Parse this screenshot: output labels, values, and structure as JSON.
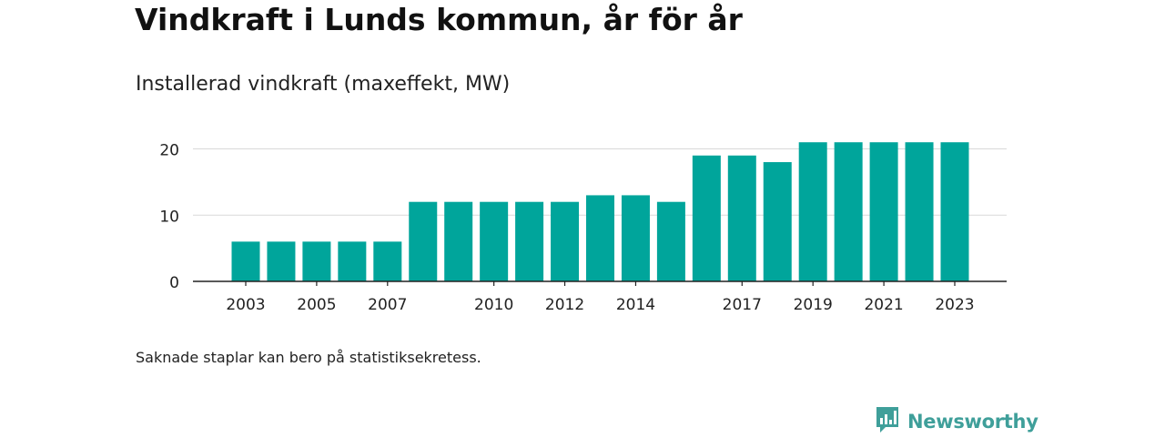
{
  "header": {
    "title": "Vindkraft i Lunds kommun, år för år",
    "subtitle": "Installerad vindkraft (maxeffekt, MW)"
  },
  "footnote": "Saknade staplar kan bero på statistiksekretess.",
  "brand": {
    "name": "Newsworthy",
    "icon": "bar-chart-speech-bubble-icon",
    "color": "#3f9f9a"
  },
  "chart_data": {
    "type": "bar",
    "categories": [
      "2003",
      "2004",
      "2005",
      "2006",
      "2007",
      "2008",
      "2009",
      "2010",
      "2011",
      "2012",
      "2013",
      "2014",
      "2015",
      "2016",
      "2017",
      "2018",
      "2019",
      "2020",
      "2021",
      "2022",
      "2023"
    ],
    "values": [
      6,
      6,
      6,
      6,
      6,
      12,
      12,
      12,
      12,
      12,
      13,
      13,
      12,
      19,
      19,
      18,
      21,
      21,
      21,
      21,
      21
    ],
    "x_tick_labels": [
      "2003",
      "2005",
      "2007",
      "2010",
      "2012",
      "2014",
      "2017",
      "2019",
      "2021",
      "2023"
    ],
    "y_ticks": [
      0,
      10,
      20
    ],
    "ylim": [
      0,
      20.8
    ],
    "grid": true,
    "bar_color": "#00a59b",
    "xlabel": "",
    "ylabel": ""
  }
}
